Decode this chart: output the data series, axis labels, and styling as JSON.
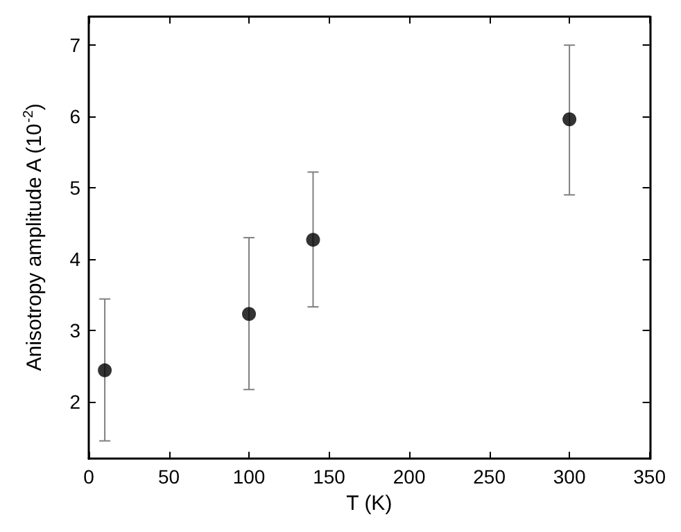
{
  "chart_data": {
    "type": "scatter",
    "xlabel": "T (K)",
    "ylabel": "Anisotropy amplitude A (10$^{-2}$)",
    "x": [
      10,
      100,
      140,
      300
    ],
    "series": [
      {
        "color": "#000000",
        "values": [
          2.44,
          3.23,
          4.27,
          5.96
        ],
        "errors": [
          [
            1.45,
            3.44
          ],
          [
            2.17,
            4.3
          ],
          [
            3.33,
            5.22
          ],
          [
            4.9,
            7.0
          ]
        ]
      }
    ],
    "xlim": [
      0,
      350
    ],
    "xticks": [
      0,
      50,
      100,
      150,
      200,
      250,
      300,
      350
    ],
    "ylim": [
      1.2,
      7.4
    ],
    "yticks": [
      2,
      3,
      4,
      5,
      6,
      7
    ],
    "grid": false,
    "marker": "circle"
  }
}
